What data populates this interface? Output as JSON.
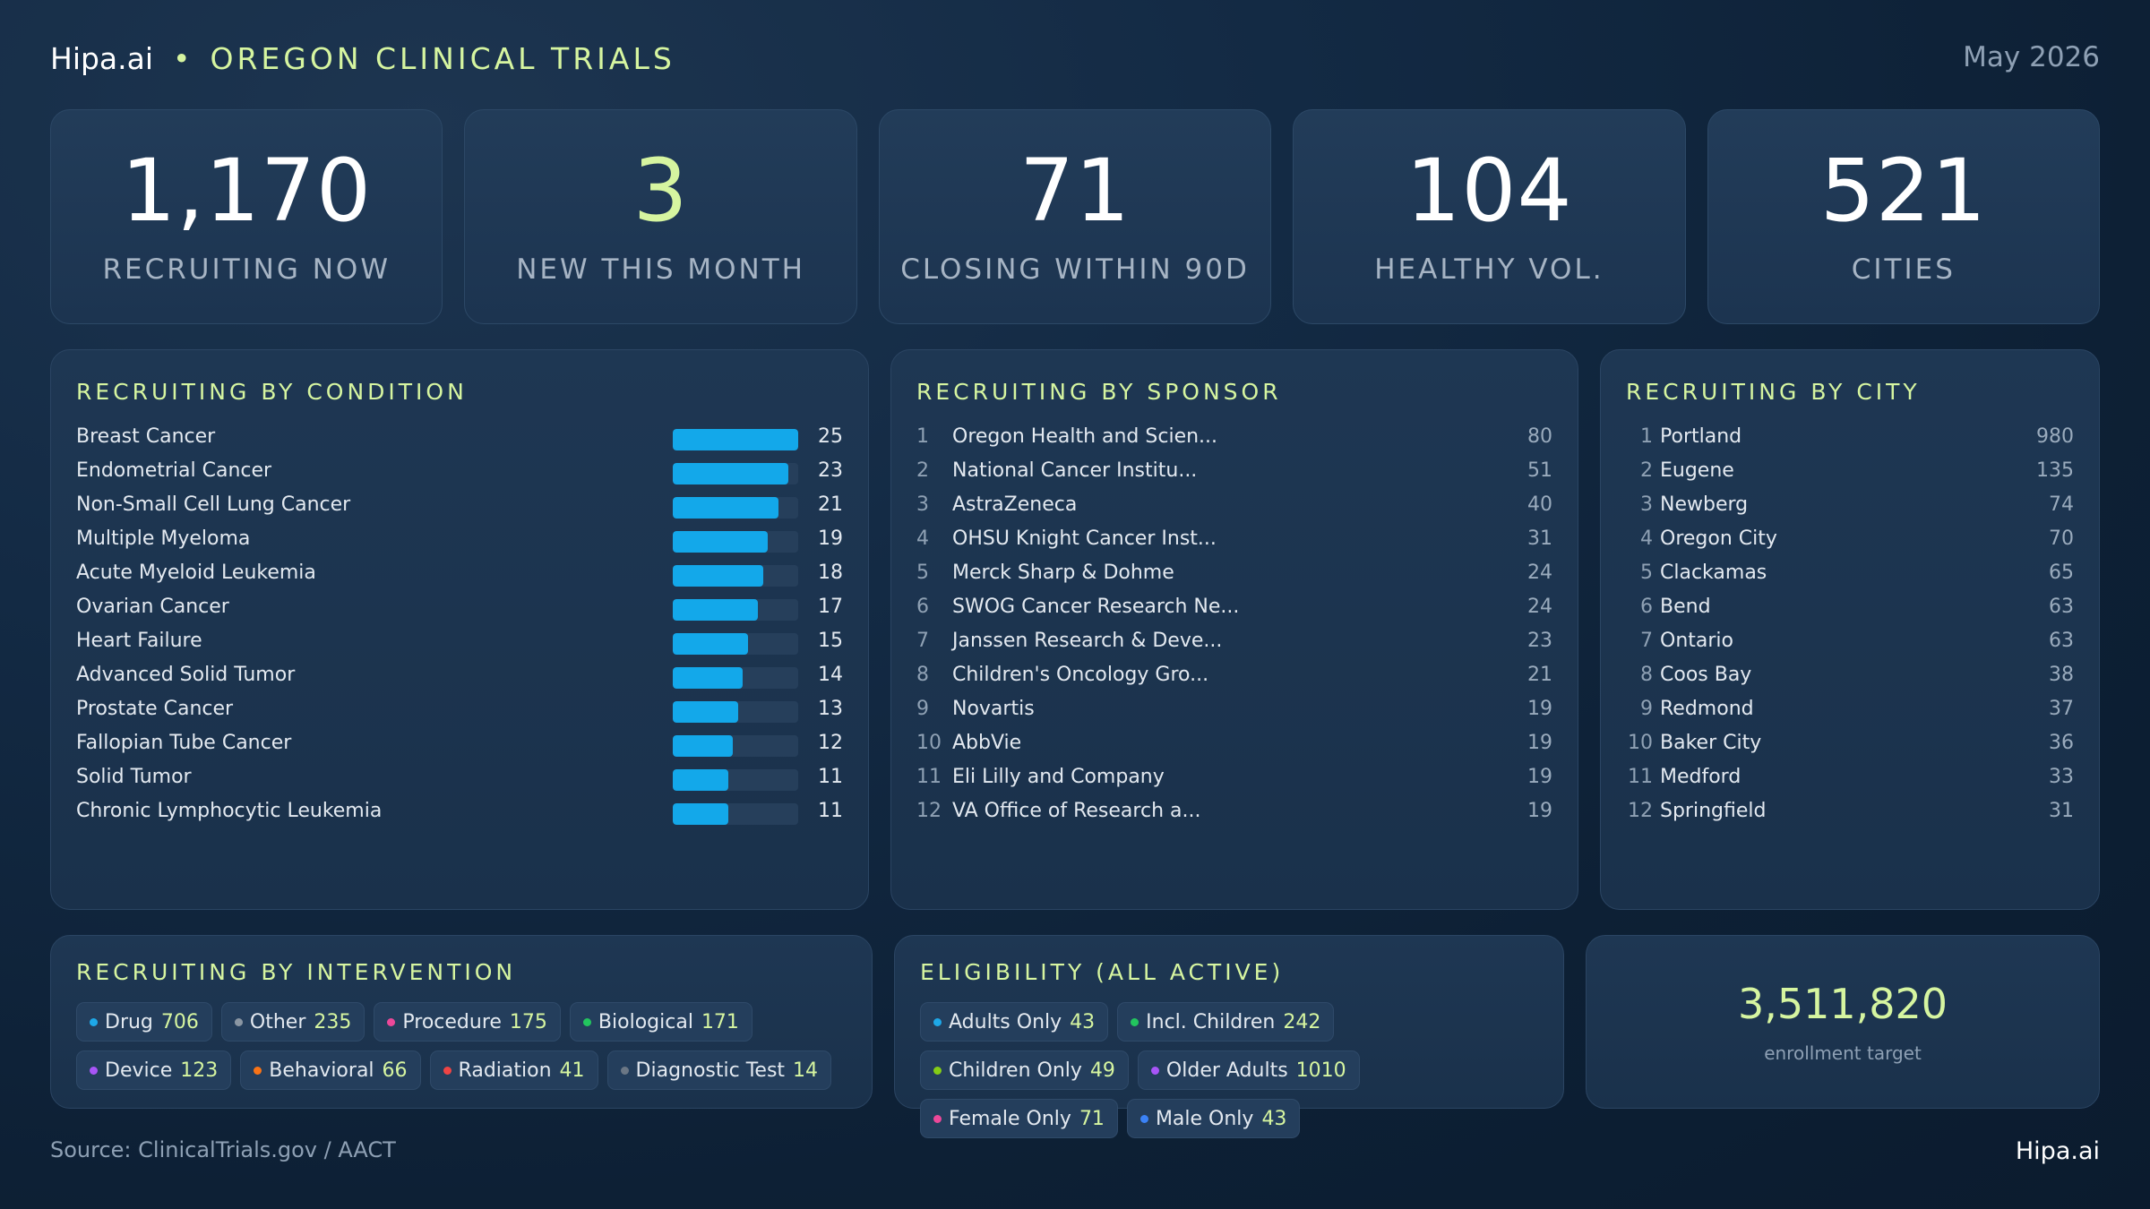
{
  "header": {
    "brand": "Hipa.ai",
    "separator": "•",
    "section": "OREGON CLINICAL TRIALS",
    "date": "May 2026"
  },
  "kpis": [
    {
      "value": "1,170",
      "label": "RECRUITING NOW"
    },
    {
      "value": "3",
      "label": "NEW THIS MONTH"
    },
    {
      "value": "71",
      "label": "CLOSING WITHIN 90D"
    },
    {
      "value": "104",
      "label": "HEALTHY VOL."
    },
    {
      "value": "521",
      "label": "CITIES"
    }
  ],
  "condition": {
    "title": "RECRUITING BY CONDITION",
    "max": 25,
    "items": [
      {
        "name": "Breast Cancer",
        "value": 25
      },
      {
        "name": "Endometrial Cancer",
        "value": 23
      },
      {
        "name": "Non-Small Cell Lung Cancer",
        "value": 21
      },
      {
        "name": "Multiple Myeloma",
        "value": 19
      },
      {
        "name": "Acute Myeloid Leukemia",
        "value": 18
      },
      {
        "name": "Ovarian Cancer",
        "value": 17
      },
      {
        "name": "Heart Failure",
        "value": 15
      },
      {
        "name": "Advanced Solid Tumor",
        "value": 14
      },
      {
        "name": "Prostate Cancer",
        "value": 13
      },
      {
        "name": "Fallopian Tube Cancer",
        "value": 12
      },
      {
        "name": "Solid Tumor",
        "value": 11
      },
      {
        "name": "Chronic Lymphocytic Leukemia",
        "value": 11
      }
    ]
  },
  "sponsor": {
    "title": "RECRUITING BY SPONSOR",
    "items": [
      {
        "rank": "1",
        "name": "Oregon Health and Scien...",
        "value": "80"
      },
      {
        "rank": "2",
        "name": "National Cancer Institu...",
        "value": "51"
      },
      {
        "rank": "3",
        "name": "AstraZeneca",
        "value": "40"
      },
      {
        "rank": "4",
        "name": "OHSU Knight Cancer Inst...",
        "value": "31"
      },
      {
        "rank": "5",
        "name": "Merck Sharp & Dohme",
        "value": "24"
      },
      {
        "rank": "6",
        "name": "SWOG Cancer Research Ne...",
        "value": "24"
      },
      {
        "rank": "7",
        "name": "Janssen Research & Deve...",
        "value": "23"
      },
      {
        "rank": "8",
        "name": "Children's Oncology Gro...",
        "value": "21"
      },
      {
        "rank": "9",
        "name": "Novartis",
        "value": "19"
      },
      {
        "rank": "10",
        "name": "AbbVie",
        "value": "19"
      },
      {
        "rank": "11",
        "name": "Eli Lilly and Company",
        "value": "19"
      },
      {
        "rank": "12",
        "name": "VA Office of Research a...",
        "value": "19"
      }
    ]
  },
  "city": {
    "title": "RECRUITING BY CITY",
    "items": [
      {
        "rank": "1",
        "name": "Portland",
        "value": "980"
      },
      {
        "rank": "2",
        "name": "Eugene",
        "value": "135"
      },
      {
        "rank": "3",
        "name": "Newberg",
        "value": "74"
      },
      {
        "rank": "4",
        "name": "Oregon City",
        "value": "70"
      },
      {
        "rank": "5",
        "name": "Clackamas",
        "value": "65"
      },
      {
        "rank": "6",
        "name": "Bend",
        "value": "63"
      },
      {
        "rank": "7",
        "name": "Ontario",
        "value": "63"
      },
      {
        "rank": "8",
        "name": "Coos Bay",
        "value": "38"
      },
      {
        "rank": "9",
        "name": "Redmond",
        "value": "37"
      },
      {
        "rank": "10",
        "name": "Baker City",
        "value": "36"
      },
      {
        "rank": "11",
        "name": "Medford",
        "value": "33"
      },
      {
        "rank": "12",
        "name": "Springfield",
        "value": "31"
      }
    ]
  },
  "intervention": {
    "title": "RECRUITING BY INTERVENTION",
    "items": [
      {
        "label": "Drug",
        "value": "706",
        "color": "#1ea8e8"
      },
      {
        "label": "Other",
        "value": "235",
        "color": "#8a96a3"
      },
      {
        "label": "Procedure",
        "value": "175",
        "color": "#ec4899"
      },
      {
        "label": "Biological",
        "value": "171",
        "color": "#22c55e"
      },
      {
        "label": "Device",
        "value": "123",
        "color": "#a855f7"
      },
      {
        "label": "Behavioral",
        "value": "66",
        "color": "#f97316"
      },
      {
        "label": "Radiation",
        "value": "41",
        "color": "#ef4444"
      },
      {
        "label": "Diagnostic Test",
        "value": "14",
        "color": "#6b7785"
      }
    ]
  },
  "eligibility": {
    "title": "ELIGIBILITY (ALL ACTIVE)",
    "items": [
      {
        "label": "Adults Only",
        "value": "43",
        "color": "#1ea8e8"
      },
      {
        "label": "Incl. Children",
        "value": "242",
        "color": "#22c55e"
      },
      {
        "label": "Children Only",
        "value": "49",
        "color": "#84cc16"
      },
      {
        "label": "Older Adults",
        "value": "1010",
        "color": "#a855f7"
      },
      {
        "label": "Female Only",
        "value": "71",
        "color": "#ec4899"
      },
      {
        "label": "Male Only",
        "value": "43",
        "color": "#3b82f6"
      }
    ]
  },
  "enrollment": {
    "value": "3,511,820",
    "label": "enrollment target"
  },
  "footer": {
    "source": "Source: ClinicalTrials.gov / AACT",
    "brand": "Hipa.ai"
  }
}
